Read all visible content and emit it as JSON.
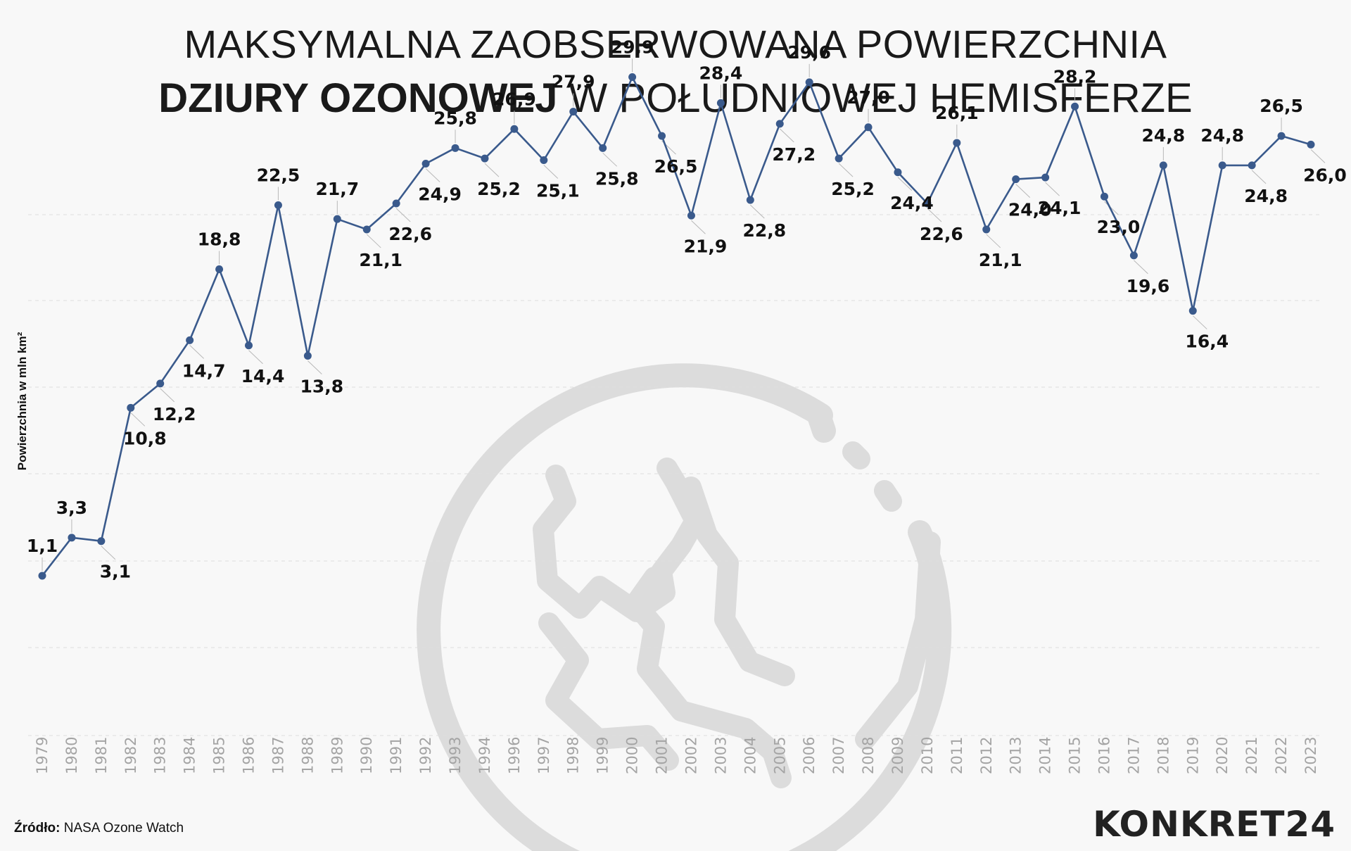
{
  "title": {
    "line1": "MAKSYMALNA ZAOBSERWOWANA POWIERZCHNIA",
    "line2_bold": "DZIURY OZONOWEJ",
    "line2_rest": " W POŁUDNIOWEJ HEMISFERZE"
  },
  "source": {
    "label": "Źródło:",
    "text": " NASA Ozone Watch"
  },
  "logo": "KONKRET24",
  "colors": {
    "line": "#3a5a8c",
    "grid": "#dedede",
    "watermark": "#dcdcdc"
  },
  "watermark_icon": "globe-icon",
  "chart_data": {
    "type": "line",
    "ylabel": "Powierzchnia w mln km²",
    "xlabel": "",
    "ylim": [
      0,
      32
    ],
    "grid": "horizontal-dashed",
    "categories": [
      "1979",
      "1980",
      "1981",
      "1982",
      "1983",
      "1984",
      "1985",
      "1986",
      "1987",
      "1988",
      "1989",
      "1990",
      "1991",
      "1992",
      "1993",
      "1994",
      "1996",
      "1997",
      "1998",
      "1999",
      "2000",
      "2001",
      "2002",
      "2003",
      "2004",
      "2005",
      "2006",
      "2007",
      "2008",
      "2009",
      "2010",
      "2011",
      "2012",
      "2013",
      "2014",
      "2015",
      "2016",
      "2017",
      "2018",
      "2019",
      "2020",
      "2021",
      "2022",
      "2023"
    ],
    "series": [
      {
        "name": "",
        "values": [
          1.1,
          3.3,
          3.1,
          10.8,
          12.2,
          14.7,
          18.8,
          14.4,
          22.5,
          13.8,
          21.7,
          21.1,
          22.6,
          24.9,
          25.8,
          25.2,
          26.9,
          25.1,
          27.9,
          25.8,
          29.9,
          26.5,
          21.9,
          28.4,
          22.8,
          27.2,
          29.6,
          25.2,
          27.0,
          24.4,
          22.6,
          26.1,
          21.1,
          24.0,
          24.1,
          28.2,
          23.0,
          19.6,
          24.8,
          16.4,
          24.8,
          24.8,
          26.5,
          26.0
        ]
      }
    ],
    "data_labels": [
      "1,1",
      "3,3",
      "3,1",
      "10,8",
      "12,2",
      "14,7",
      "18,8",
      "14,4",
      "22,5",
      "13,8",
      "21,7",
      "21,1",
      "22,6",
      "24,9",
      "25,8",
      "25,2",
      "26,9",
      "25,1",
      "27,9",
      "25,8",
      "29,9",
      "26,5",
      "21,9",
      "28,4",
      "22,8",
      "27,2",
      "29,6",
      "25,2",
      "27,0",
      "24,4",
      "22,6",
      "26,1",
      "21,1",
      "24,0",
      "24,1",
      "28,2",
      "23,0",
      "19,6",
      "24,8",
      "16,4",
      "24,8",
      "24,8",
      "26,5",
      "26,0"
    ]
  }
}
